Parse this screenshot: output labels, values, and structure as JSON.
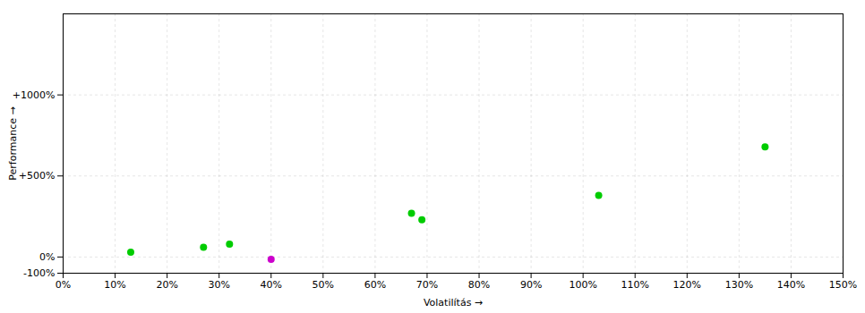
{
  "chart_data": {
    "type": "scatter",
    "xlabel": "Volatilítás",
    "ylabel": "Performance",
    "x": [
      13,
      27,
      32,
      40,
      67,
      69,
      103,
      135
    ],
    "values": [
      30,
      60,
      80,
      -15,
      270,
      230,
      380,
      680
    ],
    "colors": [
      "#00cc00",
      "#00cc00",
      "#00cc00",
      "#cc00cc",
      "#00cc00",
      "#00cc00",
      "#00cc00",
      "#00cc00"
    ],
    "xlim": [
      0,
      150
    ],
    "ylim": [
      -100,
      1500
    ],
    "xticks": [
      {
        "value": 0,
        "label": "0%"
      },
      {
        "value": 10,
        "label": "10%"
      },
      {
        "value": 20,
        "label": "20%"
      },
      {
        "value": 30,
        "label": "30%"
      },
      {
        "value": 40,
        "label": "40%"
      },
      {
        "value": 50,
        "label": "50%"
      },
      {
        "value": 60,
        "label": "60%"
      },
      {
        "value": 70,
        "label": "70%"
      },
      {
        "value": 80,
        "label": "80%"
      },
      {
        "value": 90,
        "label": "90%"
      },
      {
        "value": 100,
        "label": "100%"
      },
      {
        "value": 110,
        "label": "110%"
      },
      {
        "value": 120,
        "label": "120%"
      },
      {
        "value": 130,
        "label": "130%"
      },
      {
        "value": 140,
        "label": "140%"
      },
      {
        "value": 150,
        "label": "150%"
      }
    ],
    "yticks": [
      {
        "value": -100,
        "label": "-100%"
      },
      {
        "value": 0,
        "label": "0%"
      },
      {
        "value": 500,
        "label": "+500%"
      },
      {
        "value": 1000,
        "label": "+1000%"
      }
    ],
    "grid": true
  }
}
